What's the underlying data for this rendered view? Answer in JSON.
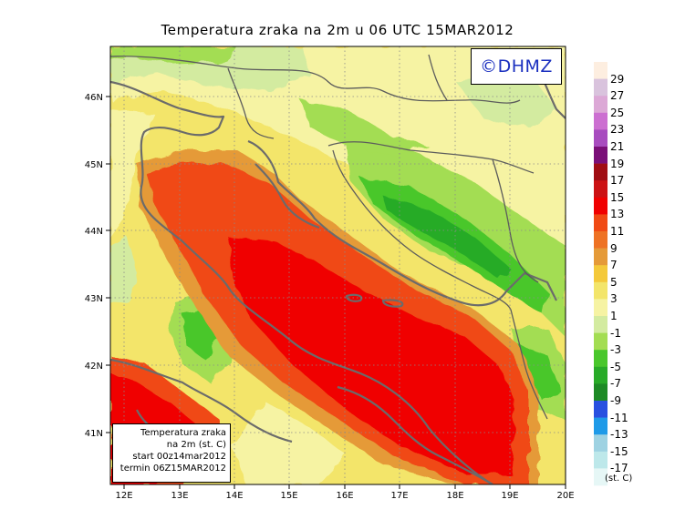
{
  "title": "Temperatura zraka na 2m u 06 UTC 15MAR2012",
  "badge": "©DHMZ",
  "info_box": {
    "line1": "Temperatura zraka",
    "line2": "na 2m (st. C)",
    "line3": "start 00z14mar2012",
    "line4": "termin 06Z15MAR2012"
  },
  "x_ticks": [
    "12E",
    "13E",
    "14E",
    "15E",
    "16E",
    "17E",
    "18E",
    "19E",
    "20E"
  ],
  "y_ticks": [
    "46N",
    "45N",
    "44N",
    "43N",
    "42N",
    "41N"
  ],
  "colorbar": {
    "unit": "(st. C)",
    "labels": [
      "29",
      "27",
      "25",
      "23",
      "21",
      "19",
      "17",
      "15",
      "13",
      "11",
      "9",
      "7",
      "5",
      "3",
      "1",
      "-1",
      "-3",
      "-5",
      "-7",
      "-9",
      "-11",
      "-13",
      "-15",
      "-17"
    ],
    "colors": [
      "#fdeee0",
      "#d9c3dd",
      "#dca8d6",
      "#cc6fd1",
      "#a84cbf",
      "#7a0f78",
      "#a00d13",
      "#cc1214",
      "#f00000",
      "#f04a14",
      "#ee7224",
      "#e59a38",
      "#f4c93a",
      "#f3e56a",
      "#f6f3a3",
      "#d3eba0",
      "#a3dd52",
      "#49c72c",
      "#28ab28",
      "#1d8a25",
      "#2850e0",
      "#1e9ae8",
      "#9ed2e2",
      "#bde8ea",
      "#e6f7f6"
    ]
  }
}
